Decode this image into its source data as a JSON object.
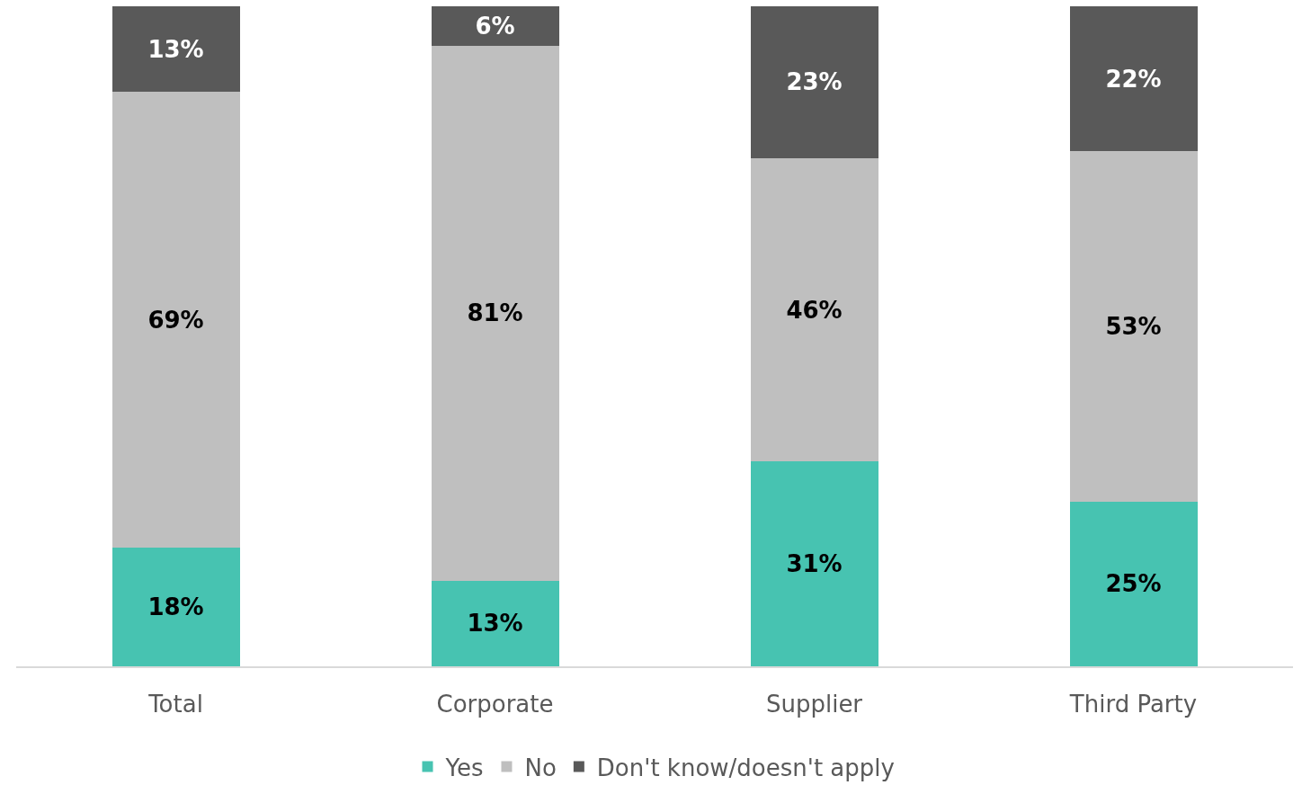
{
  "chart_data": {
    "type": "bar",
    "stacked": true,
    "categories": [
      "Total",
      "Corporate",
      "Supplier",
      "Third Party"
    ],
    "series": [
      {
        "name": "Yes",
        "color": "#47c3b1",
        "values": [
          18,
          13,
          31,
          25
        ],
        "value_labels": [
          "18%",
          "13%",
          "31%",
          "25%"
        ]
      },
      {
        "name": "No",
        "color": "#bfbfbf",
        "values": [
          69,
          81,
          46,
          53
        ],
        "value_labels": [
          "69%",
          "81%",
          "46%",
          "53%"
        ]
      },
      {
        "name": "Don't know/doesn't apply",
        "color": "#595959",
        "values": [
          13,
          6,
          23,
          22
        ],
        "value_labels": [
          "13%",
          "6%",
          "23%",
          "22%"
        ]
      }
    ],
    "ylim": [
      0,
      100
    ],
    "tick_labels": "x",
    "legend": "bottom"
  }
}
